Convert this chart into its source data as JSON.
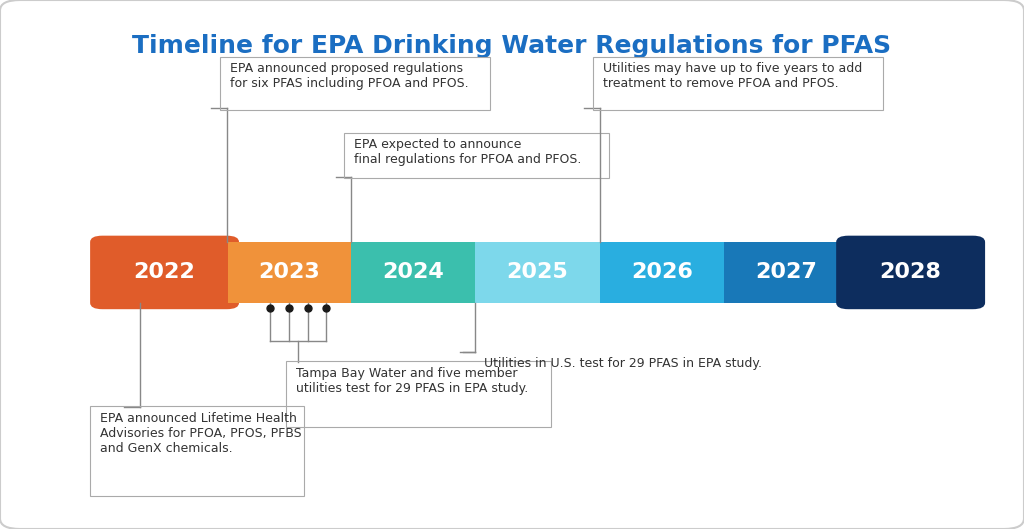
{
  "title": "Timeline for EPA Drinking Water Regulations for PFAS",
  "title_color": "#1B6EC2",
  "title_fontsize": 18,
  "background_color": "#ffffff",
  "border_color": "#cccccc",
  "segments": [
    {
      "label": "2022",
      "color": "#E05C2A"
    },
    {
      "label": "2023",
      "color": "#F0923A"
    },
    {
      "label": "2024",
      "color": "#3BBFAD"
    },
    {
      "label": "2025",
      "color": "#7DD8EB"
    },
    {
      "label": "2026",
      "color": "#29AEE0"
    },
    {
      "label": "2027",
      "color": "#1878B8"
    },
    {
      "label": "2028",
      "color": "#0D2D5E"
    }
  ],
  "text_color": "#333333",
  "annotation_fontsize": 9.0,
  "label_fontsize": 16,
  "line_color": "#888888",
  "box_edge_color": "#aaaaaa"
}
